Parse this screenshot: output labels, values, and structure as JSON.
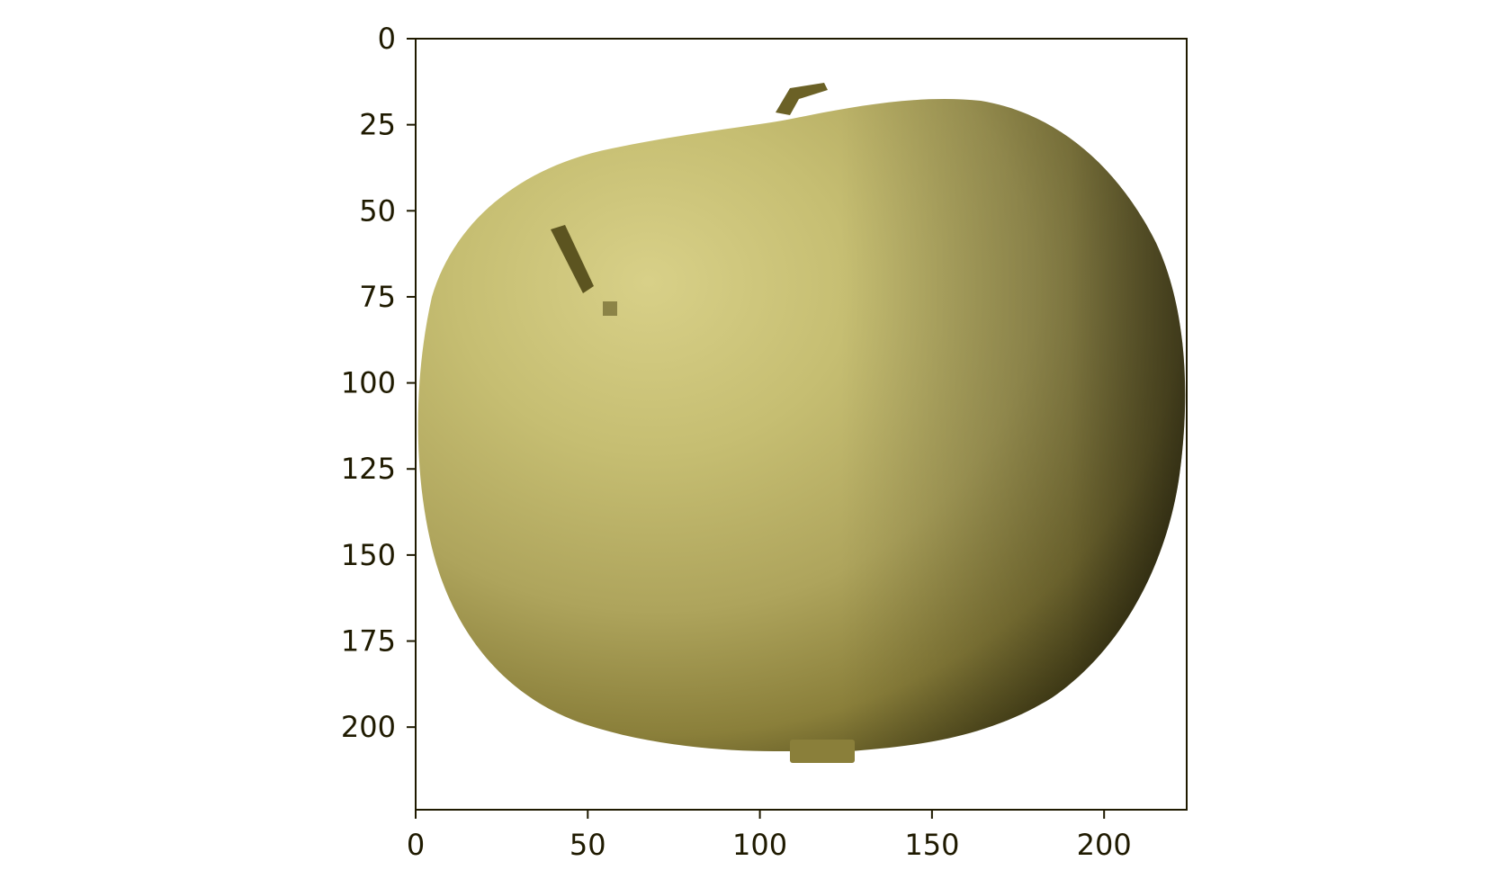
{
  "image": {
    "subject": "apple-icon",
    "extent": {
      "x": [
        0,
        224
      ],
      "y": [
        0,
        224
      ]
    },
    "colors": {
      "background": "#ffffff",
      "axes": "#1f1a00",
      "highlight": "#d8d088",
      "light": "#c6be72",
      "mid": "#aea45c",
      "shade": "#8a7f3a",
      "dark": "#3a3510",
      "stem": "#6b6126",
      "speck": "#5c5420"
    }
  },
  "axes": {
    "xticks": [
      {
        "value": 0,
        "label": "0"
      },
      {
        "value": 50,
        "label": "50"
      },
      {
        "value": 100,
        "label": "100"
      },
      {
        "value": 150,
        "label": "150"
      },
      {
        "value": 200,
        "label": "200"
      }
    ],
    "yticks": [
      {
        "value": 0,
        "label": "0"
      },
      {
        "value": 25,
        "label": "25"
      },
      {
        "value": 50,
        "label": "50"
      },
      {
        "value": 75,
        "label": "75"
      },
      {
        "value": 100,
        "label": "100"
      },
      {
        "value": 125,
        "label": "125"
      },
      {
        "value": 150,
        "label": "150"
      },
      {
        "value": 175,
        "label": "175"
      },
      {
        "value": 200,
        "label": "200"
      }
    ]
  }
}
